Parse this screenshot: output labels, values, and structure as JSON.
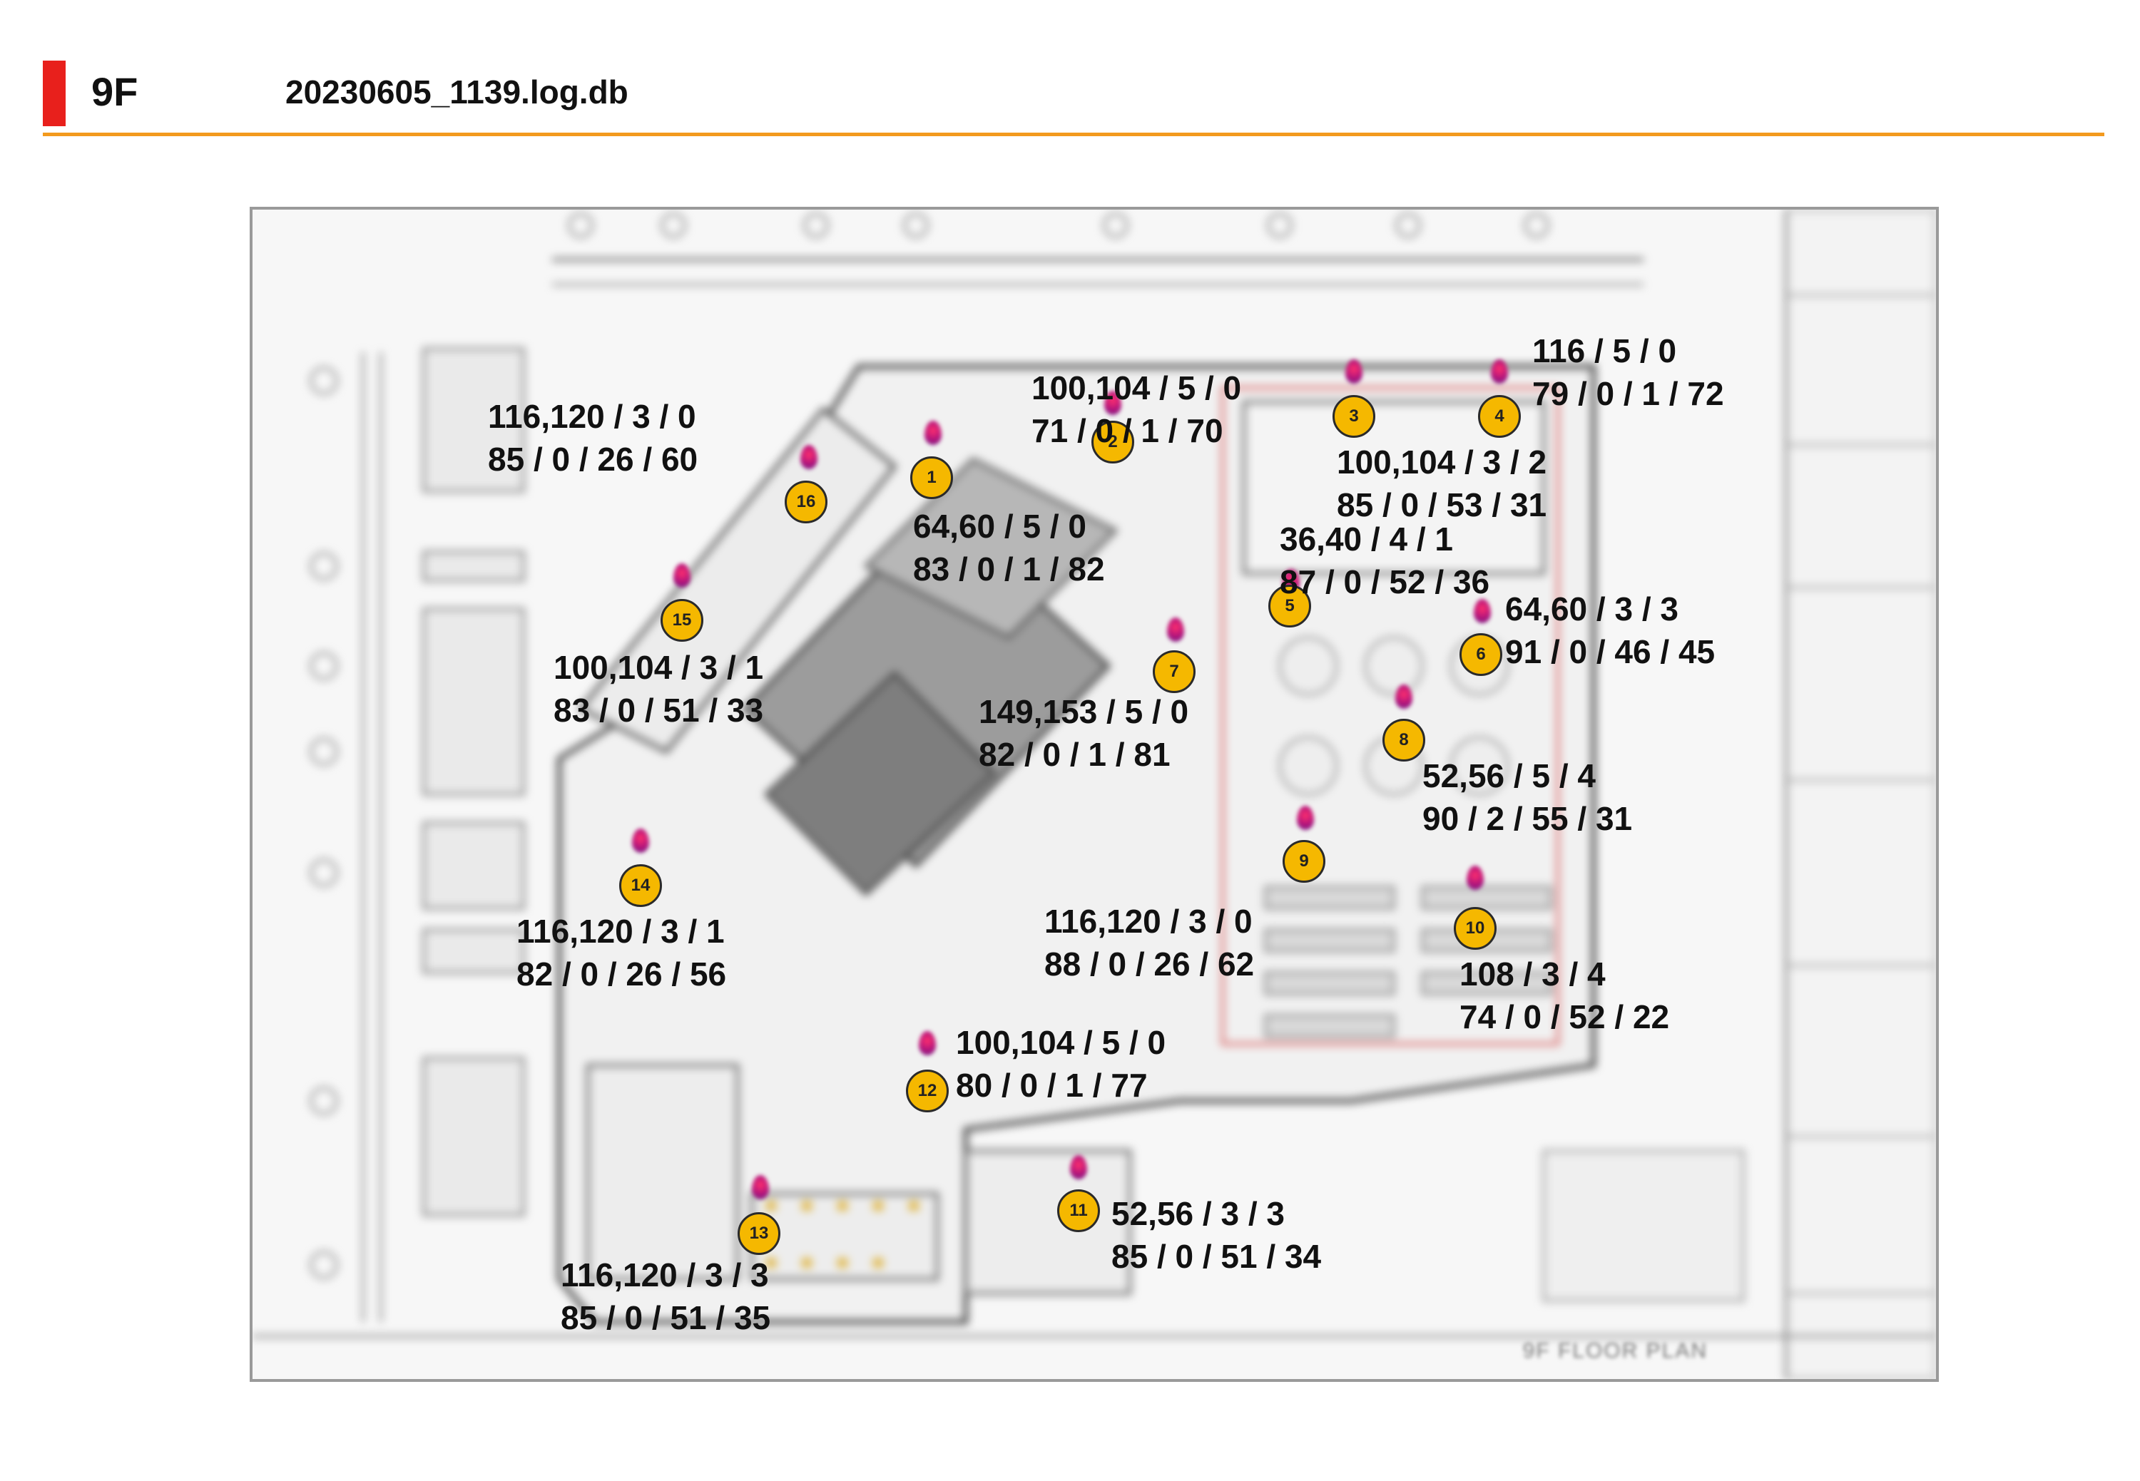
{
  "header": {
    "floor": "9F",
    "filename": "20230605_1139.log.db"
  },
  "plan": {
    "title": "9F FLOOR PLAN"
  },
  "markers": [
    {
      "id": "1",
      "line1": "64,60 / 5 / 0",
      "line2": "83 / 0 / 1 / 82"
    },
    {
      "id": "2",
      "line1": "100,104 / 5 / 0",
      "line2": "71 / 0 / 1 / 70"
    },
    {
      "id": "3",
      "line1": "100,104 / 3 / 2",
      "line2": "85 / 0 / 53 / 31"
    },
    {
      "id": "4",
      "line1": "116 / 5 / 0",
      "line2": "79 / 0 / 1 / 72"
    },
    {
      "id": "5",
      "line1": "36,40 / 4 / 1",
      "line2": "87 / 0 / 52 / 36"
    },
    {
      "id": "6",
      "line1": "64,60 / 3 / 3",
      "line2": "91 / 0 / 46 / 45"
    },
    {
      "id": "7",
      "line1": "149,153 / 5 / 0",
      "line2": "82 / 0 / 1 / 81"
    },
    {
      "id": "8",
      "line1": "52,56 / 5 / 4",
      "line2": "90 / 2 / 55 / 31"
    },
    {
      "id": "9",
      "line1": "116,120 / 3 / 0",
      "line2": "88 / 0 / 26 / 62"
    },
    {
      "id": "10",
      "line1": "108 / 3 / 4",
      "line2": "74 / 0 / 52 / 22"
    },
    {
      "id": "11",
      "line1": "52,56 / 3 / 3",
      "line2": "85 / 0 / 51 / 34"
    },
    {
      "id": "12",
      "line1": "100,104 / 5 / 0",
      "line2": "80 / 0 / 1 / 77"
    },
    {
      "id": "13",
      "line1": "116,120 / 3 / 3",
      "line2": "85 / 0 / 51 / 35"
    },
    {
      "id": "14",
      "line1": "116,120 / 3 / 1",
      "line2": "82 / 0 / 26 / 56"
    },
    {
      "id": "15",
      "line1": "100,104 / 3 / 1",
      "line2": "83 / 0 / 51 / 33"
    },
    {
      "id": "16",
      "line1": "116,120 / 3 / 0",
      "line2": "85 / 0 / 26 / 60"
    }
  ]
}
